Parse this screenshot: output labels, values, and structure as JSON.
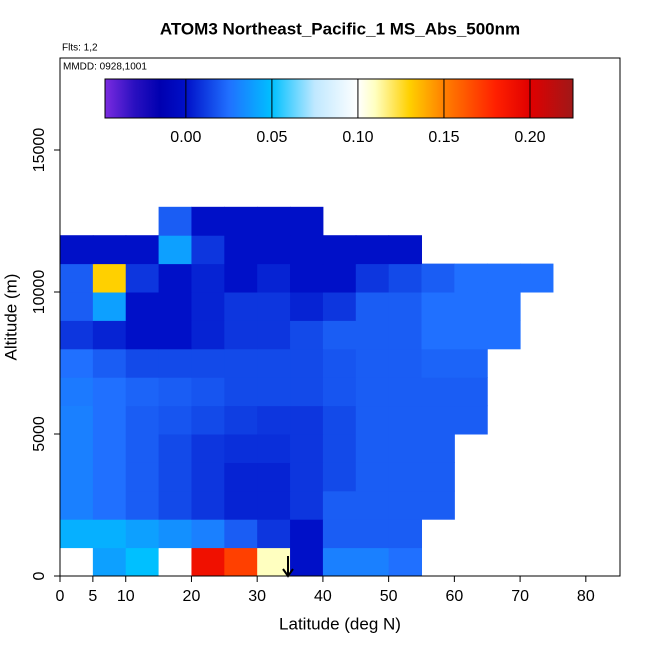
{
  "chart_data": {
    "type": "heatmap",
    "title": "ATOM3 Northeast_Pacific_1 MS_Abs_500nm",
    "annotations": [
      "Flts: 1,2",
      "MMDD: 0928,1001"
    ],
    "xlabel": "Latitude (deg N)",
    "ylabel": "Altitude (m)",
    "xlim": [
      0,
      85.2
    ],
    "ylim": [
      0,
      18240
    ],
    "xticks": [
      0,
      5,
      10,
      20,
      30,
      40,
      50,
      60,
      70,
      80
    ],
    "yticks": [
      0,
      5000,
      10000,
      15000
    ],
    "xbins": [
      0,
      5,
      10,
      15,
      20,
      25,
      30,
      35,
      40,
      45,
      50,
      55,
      60,
      65,
      70,
      75
    ],
    "ybins": [
      0,
      1000,
      2000,
      3000,
      4000,
      5000,
      6000,
      7000,
      8000,
      9000,
      10000,
      11000,
      12000,
      13000
    ],
    "z": [
      [
        null,
        0.04,
        0.05,
        0.1,
        0.19,
        0.17,
        0.11,
        0.0,
        0.03,
        0.03,
        0.025,
        null,
        null,
        null,
        null
      ],
      [
        0.045,
        0.045,
        0.04,
        0.035,
        0.03,
        0.02,
        0.01,
        0.0,
        0.02,
        0.02,
        0.02,
        null,
        null,
        null,
        null
      ],
      [
        0.03,
        0.025,
        0.02,
        0.015,
        0.01,
        0.005,
        0.005,
        0.01,
        0.02,
        0.02,
        0.02,
        0.02,
        null,
        null,
        null
      ],
      [
        0.03,
        0.025,
        0.02,
        0.015,
        0.01,
        0.005,
        0.005,
        0.01,
        0.015,
        0.02,
        0.02,
        0.02,
        null,
        null,
        null
      ],
      [
        0.03,
        0.025,
        0.02,
        0.015,
        0.01,
        0.008,
        0.008,
        0.01,
        0.015,
        0.02,
        0.02,
        0.02,
        null,
        null,
        null
      ],
      [
        0.03,
        0.025,
        0.02,
        0.018,
        0.015,
        0.012,
        0.01,
        0.01,
        0.015,
        0.02,
        0.02,
        0.02,
        0.02,
        null,
        null
      ],
      [
        0.028,
        0.025,
        0.022,
        0.02,
        0.018,
        0.015,
        0.015,
        0.015,
        0.018,
        0.02,
        0.02,
        0.02,
        0.02,
        null,
        null
      ],
      [
        0.025,
        0.02,
        0.015,
        0.015,
        0.015,
        0.015,
        0.015,
        0.015,
        0.018,
        0.02,
        0.02,
        0.022,
        0.022,
        null,
        null
      ],
      [
        0.01,
        0.005,
        0.0,
        0.0,
        0.005,
        0.01,
        0.01,
        0.015,
        0.02,
        0.02,
        0.02,
        0.025,
        0.025,
        0.025,
        null
      ],
      [
        0.02,
        0.04,
        0.0,
        0.0,
        0.005,
        0.01,
        0.01,
        0.005,
        0.01,
        0.02,
        0.02,
        0.025,
        0.025,
        0.025,
        null
      ],
      [
        0.02,
        0.13,
        0.01,
        0.0,
        0.005,
        0.0,
        0.005,
        0.0,
        0.0,
        0.01,
        0.015,
        0.02,
        0.025,
        0.025,
        0.025
      ],
      [
        0.0,
        0.0,
        0.0,
        0.04,
        0.01,
        0.0,
        0.0,
        0.0,
        0.0,
        0.0,
        0.0,
        null,
        null,
        null,
        null
      ],
      [
        null,
        null,
        null,
        0.02,
        0.0,
        0.0,
        0.0,
        0.0,
        null,
        null,
        null,
        null,
        null,
        null,
        null
      ]
    ],
    "zlim": [
      -0.047,
      0.225
    ],
    "zticks": [
      {
        "value": 0,
        "label": "0.00"
      },
      {
        "value": 0.05,
        "label": "0.05"
      },
      {
        "value": 0.1,
        "label": "0.10"
      },
      {
        "value": 0.15,
        "label": "0.15"
      },
      {
        "value": 0.2,
        "label": "0.20"
      }
    ],
    "colormap": [
      [
        -0.047,
        "#7b2be0"
      ],
      [
        -0.03,
        "#2a10c0"
      ],
      [
        -0.015,
        "#0000b0"
      ],
      [
        0.0,
        "#0010c8"
      ],
      [
        0.025,
        "#2070ff"
      ],
      [
        0.05,
        "#00c0ff"
      ],
      [
        0.075,
        "#c0e8ff"
      ],
      [
        0.1,
        "#ffffff"
      ],
      [
        0.11,
        "#ffffc0"
      ],
      [
        0.13,
        "#ffd000"
      ],
      [
        0.15,
        "#ff8000"
      ],
      [
        0.18,
        "#ff2000"
      ],
      [
        0.2,
        "#e00000"
      ],
      [
        0.225,
        "#a01818"
      ]
    ]
  }
}
